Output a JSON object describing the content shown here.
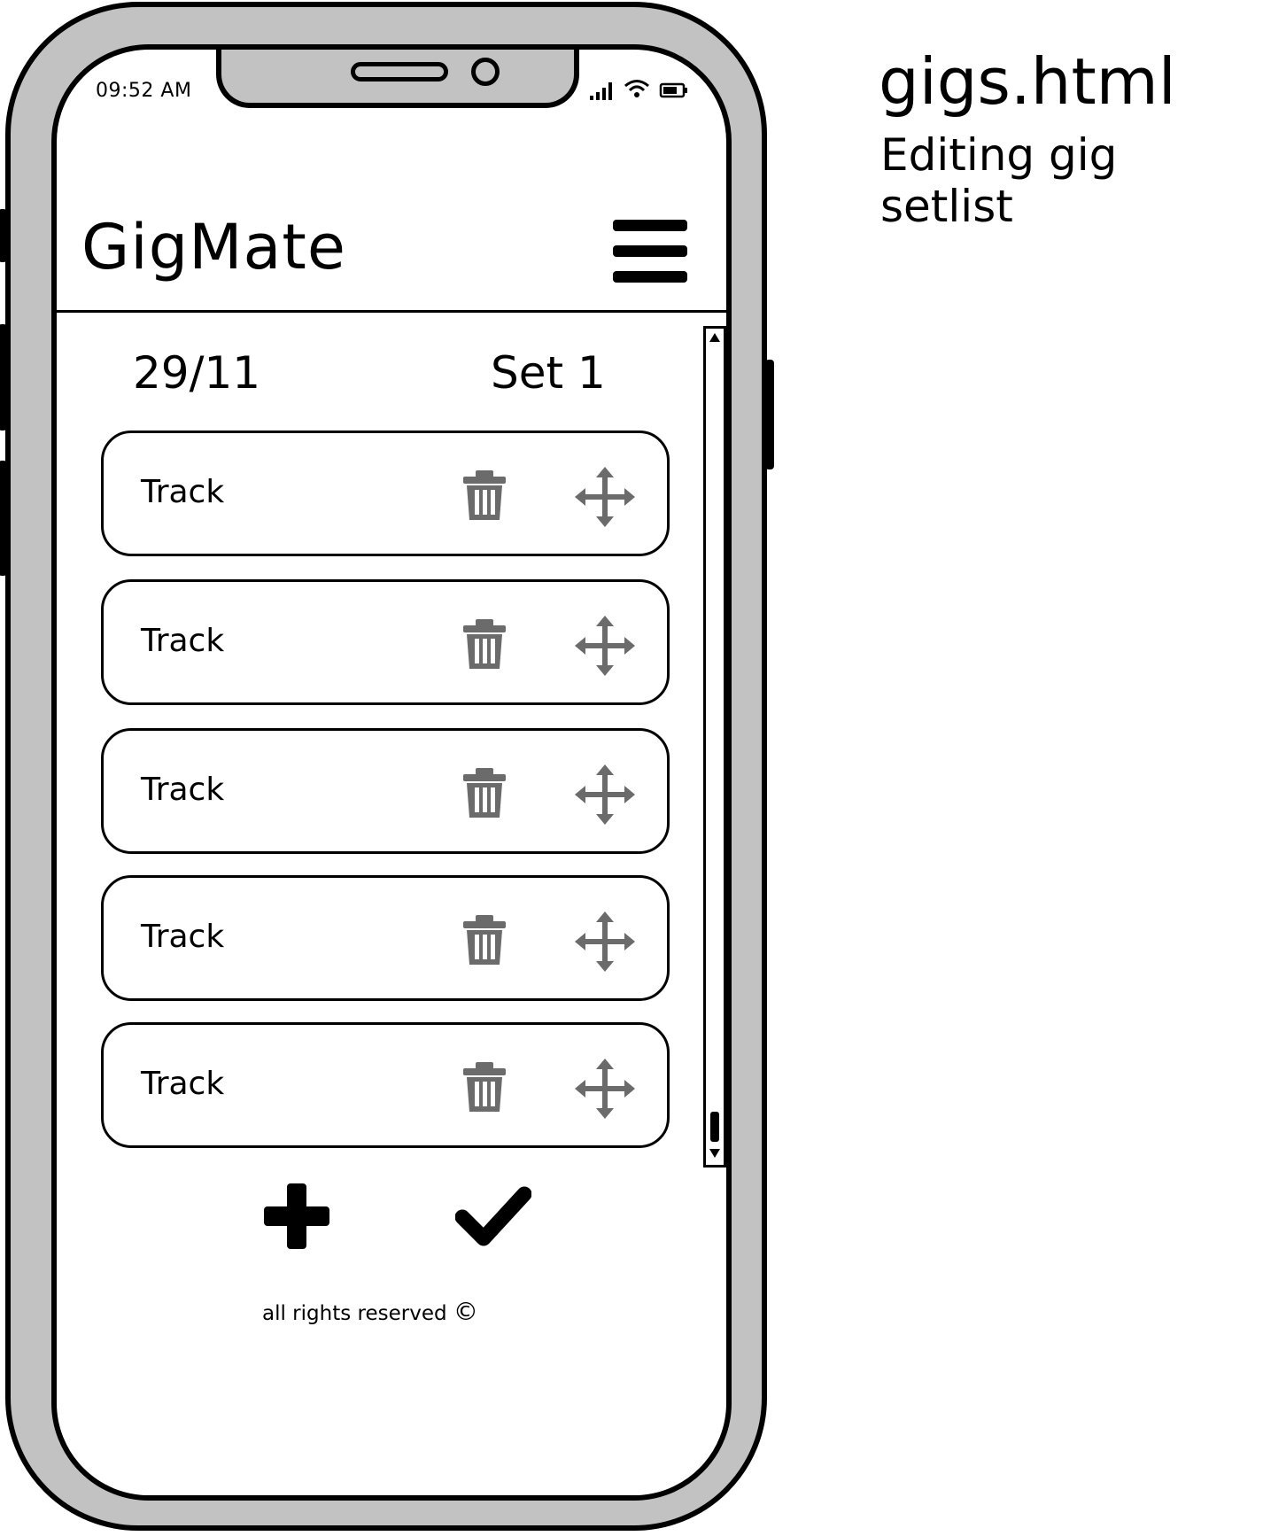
{
  "annotation": {
    "filename": "gigs.html",
    "description": "Editing gig setlist"
  },
  "status_bar": {
    "time": "09:52 AM",
    "icons": [
      "signal-icon",
      "wifi-icon",
      "battery-icon"
    ]
  },
  "header": {
    "app_title": "GigMate",
    "menu_icon": "hamburger-menu-icon"
  },
  "setlist": {
    "date": "29/11",
    "set_name": "Set 1",
    "tracks": [
      {
        "label": "Track"
      },
      {
        "label": "Track"
      },
      {
        "label": "Track"
      },
      {
        "label": "Track"
      },
      {
        "label": "Track"
      }
    ],
    "track_actions": [
      "trash-icon",
      "move-icon"
    ]
  },
  "actions": {
    "add_icon": "plus-icon",
    "confirm_icon": "checkmark-icon"
  },
  "footer": {
    "text": "all rights reserved",
    "copyright_symbol": "©"
  },
  "colors": {
    "phone_frame": "#c2c2c2",
    "icon_gray": "#6b6b6b",
    "outline": "#000000"
  }
}
